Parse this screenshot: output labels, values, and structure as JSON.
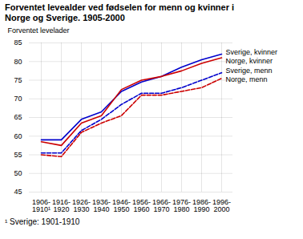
{
  "chart_data": {
    "type": "line",
    "title": "Forventet levealder ved fødselen for menn og kvinner i\nNorge og Sverige. 1905-2000",
    "ylabel": "Forventet levelader",
    "caption": "¹ Sverige: 1901-1910",
    "categories": [
      "1906-\n1910¹",
      "1916-\n1920",
      "1926-\n1930",
      "1936-\n1940",
      "1946-\n1950",
      "1956-\n1960",
      "1966-\n1970",
      "1976-\n1980",
      "1986-\n1990",
      "1996-\n2000"
    ],
    "series": [
      {
        "name": "Sverige, kvinner",
        "color": "#0000cc",
        "line_style": "solid",
        "values": [
          59.0,
          59.0,
          64.5,
          66.5,
          72.0,
          74.5,
          76.0,
          78.5,
          80.5,
          82.0
        ]
      },
      {
        "name": "Norge, kvinner",
        "color": "#cc0000",
        "line_style": "solid",
        "values": [
          58.5,
          57.5,
          63.5,
          65.5,
          72.5,
          75.0,
          76.0,
          77.5,
          79.5,
          81.0
        ]
      },
      {
        "name": "Sverige, menn",
        "color": "#0000cc",
        "line_style": "dashed",
        "values": [
          55.5,
          55.5,
          61.5,
          64.5,
          68.5,
          71.5,
          71.5,
          73.0,
          75.0,
          77.0
        ]
      },
      {
        "name": "Norge, menn",
        "color": "#cc0000",
        "line_style": "dashed",
        "values": [
          55.0,
          54.5,
          61.0,
          63.5,
          65.5,
          71.0,
          71.0,
          72.0,
          73.0,
          75.5
        ]
      }
    ],
    "ylim": [
      45,
      85
    ],
    "yticks": [
      45,
      50,
      55,
      60,
      65,
      70,
      75,
      80,
      85
    ],
    "grid": true
  }
}
